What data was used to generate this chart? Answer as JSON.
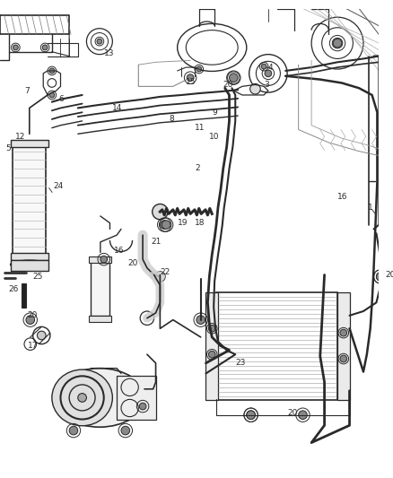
{
  "bg_color": "#ffffff",
  "line_color": "#2a2a2a",
  "label_color": "#1a1a1a",
  "label_fontsize": 6.5,
  "fig_w": 4.38,
  "fig_h": 5.33,
  "dpi": 100
}
